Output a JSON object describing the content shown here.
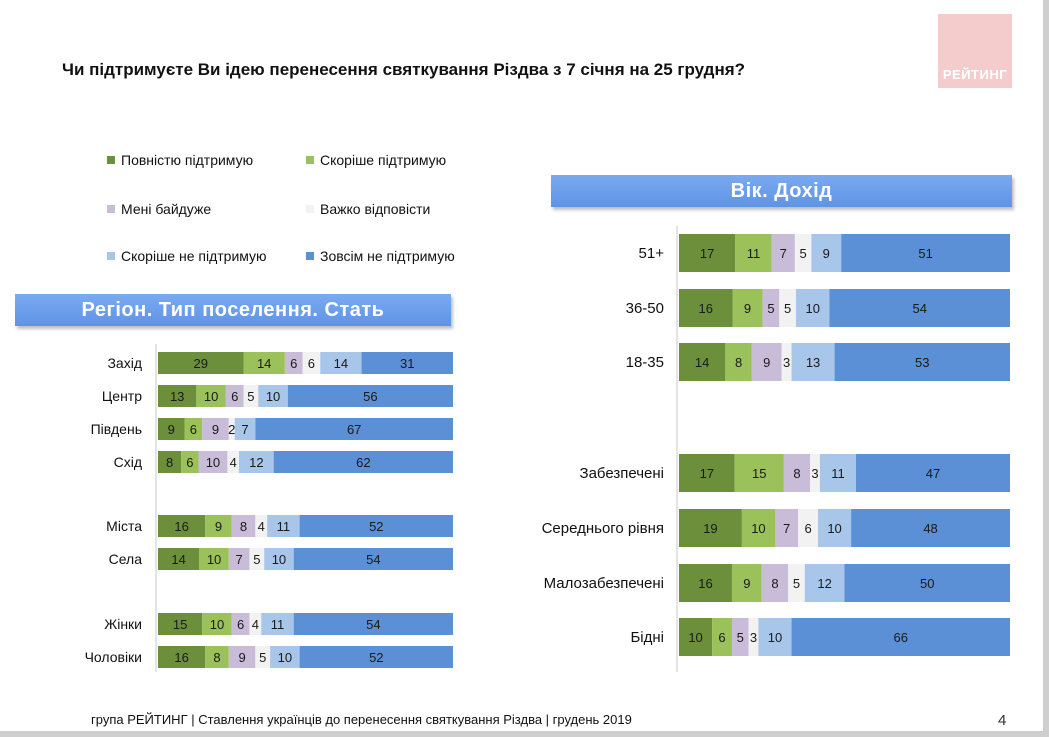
{
  "title": "Чи підтримуєте Ви ідею перенесення святкування Різдва з 7 січня на 25 грудня?",
  "logo_text": "РЕЙТИНГ",
  "legend": [
    {
      "label": "Повністю підтримую",
      "color": "#6b8f3a"
    },
    {
      "label": "Скоріше  підтримую",
      "color": "#9bc15a"
    },
    {
      "label": "Мені байдуже",
      "color": "#c8bcd8"
    },
    {
      "label": "Важко відповісти",
      "color": "#f2f2f2"
    },
    {
      "label": "Скоріше  не підтримую",
      "color": "#a8c6ea"
    },
    {
      "label": "Зовсім не підтримую",
      "color": "#5b8fd6"
    }
  ],
  "left_header": "Регіон. Тип поселення. Стать",
  "right_header": "Вік. Дохід",
  "footer": "група РЕЙТИНГ | Ставлення українців до перенесення святкування Різдва  | грудень 2019",
  "page_number": "4",
  "chart_data": [
    {
      "type": "bar",
      "stacked": true,
      "orientation": "horizontal",
      "title": "Регіон. Тип поселення. Стать",
      "categories": [
        "Захід",
        "Центр",
        "Південь",
        "Схід",
        "Міста",
        "Села",
        "Жінки",
        "Чоловіки"
      ],
      "series": [
        {
          "name": "Повністю підтримую",
          "values": [
            29,
            13,
            9,
            8,
            16,
            14,
            15,
            16
          ]
        },
        {
          "name": "Скоріше  підтримую",
          "values": [
            14,
            10,
            6,
            6,
            9,
            10,
            10,
            8
          ]
        },
        {
          "name": "Мені байдуже",
          "values": [
            6,
            6,
            9,
            10,
            8,
            7,
            6,
            9
          ]
        },
        {
          "name": "Важко відповісти",
          "values": [
            6,
            5,
            2,
            4,
            4,
            5,
            4,
            5
          ]
        },
        {
          "name": "Скоріше  не підтримую",
          "values": [
            14,
            10,
            7,
            12,
            11,
            10,
            11,
            10
          ]
        },
        {
          "name": "Зовсім не підтримую",
          "values": [
            31,
            56,
            67,
            62,
            52,
            54,
            54,
            52
          ]
        }
      ]
    },
    {
      "type": "bar",
      "stacked": true,
      "orientation": "horizontal",
      "title": "Вік. Дохід",
      "categories": [
        "51+",
        "36-50",
        "18-35",
        "Забезпечені",
        "Середнього рівня",
        "Малозабезпечені",
        "Бідні"
      ],
      "series": [
        {
          "name": "Повністю підтримую",
          "values": [
            17,
            16,
            14,
            17,
            19,
            16,
            10
          ]
        },
        {
          "name": "Скоріше  підтримую",
          "values": [
            11,
            9,
            8,
            15,
            10,
            9,
            6
          ]
        },
        {
          "name": "Мені байдуже",
          "values": [
            7,
            5,
            9,
            8,
            7,
            8,
            5
          ]
        },
        {
          "name": "Важко відповісти",
          "values": [
            5,
            5,
            3,
            3,
            6,
            5,
            3
          ]
        },
        {
          "name": "Скоріше  не підтримую",
          "values": [
            9,
            10,
            13,
            11,
            10,
            12,
            10
          ]
        },
        {
          "name": "Зовсім не підтримую",
          "values": [
            51,
            54,
            53,
            47,
            48,
            50,
            66
          ]
        }
      ]
    }
  ]
}
